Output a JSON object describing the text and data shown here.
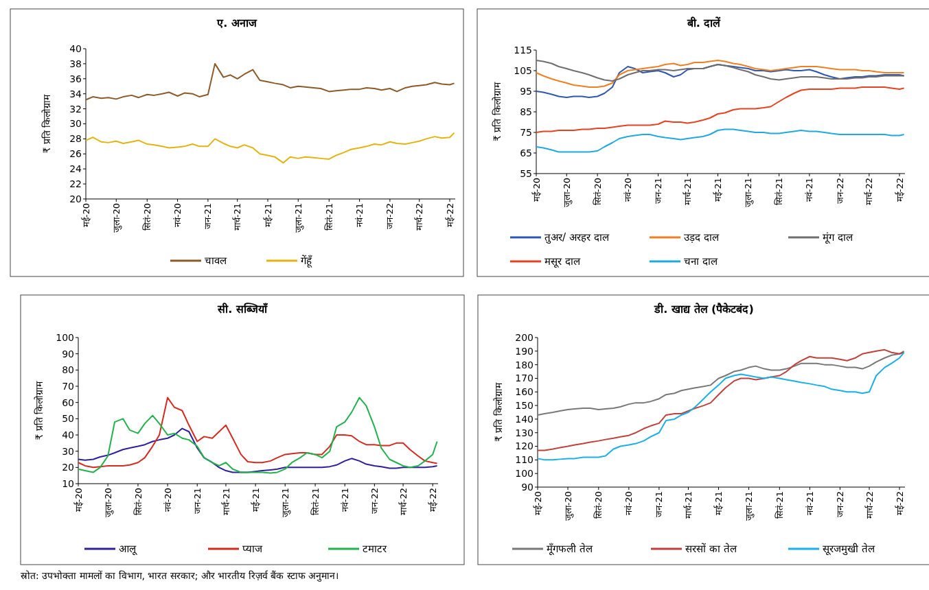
{
  "chart_data": [
    {
      "type": "line",
      "title": "ए. अनाज",
      "ylabel": "₹ प्रति किलोग्राम",
      "legend": "bottom",
      "ylim": [
        20,
        40
      ],
      "yticks": [
        20,
        22,
        24,
        26,
        28,
        30,
        32,
        34,
        36,
        38,
        40
      ],
      "xlim": [
        "2020-05-01",
        "2022-05-12"
      ],
      "xticks": [
        {
          "value": "2020-05-01",
          "label": "मई-20"
        },
        {
          "value": "2020-07-01",
          "label": "जुला-20"
        },
        {
          "value": "2020-09-01",
          "label": "सितं-20"
        },
        {
          "value": "2020-11-01",
          "label": "नवं-20"
        },
        {
          "value": "2021-01-01",
          "label": "जन-21"
        },
        {
          "value": "2021-03-01",
          "label": "मार्च-21"
        },
        {
          "value": "2021-05-01",
          "label": "मई-21"
        },
        {
          "value": "2021-07-01",
          "label": "जुला-21"
        },
        {
          "value": "2021-09-01",
          "label": "सितं-21"
        },
        {
          "value": "2021-11-01",
          "label": "नवं-21"
        },
        {
          "value": "2022-01-01",
          "label": "जन-22"
        },
        {
          "value": "2022-03-01",
          "label": "मार्च-22"
        },
        {
          "value": "2022-05-01",
          "label": "मई-22"
        }
      ],
      "x": [
        "2020-05-01",
        "2020-05-15",
        "2020-06-01",
        "2020-06-15",
        "2020-07-01",
        "2020-07-15",
        "2020-08-01",
        "2020-08-15",
        "2020-09-01",
        "2020-09-15",
        "2020-10-01",
        "2020-10-15",
        "2020-11-01",
        "2020-11-15",
        "2020-12-01",
        "2020-12-15",
        "2021-01-01",
        "2021-01-15",
        "2021-02-01",
        "2021-02-15",
        "2021-03-01",
        "2021-03-15",
        "2021-04-01",
        "2021-04-15",
        "2021-05-01",
        "2021-05-15",
        "2021-06-01",
        "2021-06-15",
        "2021-07-01",
        "2021-07-15",
        "2021-08-01",
        "2021-08-15",
        "2021-09-01",
        "2021-09-15",
        "2021-10-01",
        "2021-10-15",
        "2021-11-01",
        "2021-11-15",
        "2021-12-01",
        "2021-12-15",
        "2022-01-01",
        "2022-01-15",
        "2022-02-01",
        "2022-02-15",
        "2022-03-01",
        "2022-03-15",
        "2022-04-01",
        "2022-04-15",
        "2022-05-01",
        "2022-05-10"
      ],
      "series": [
        {
          "name": "चावल",
          "color": "#8c5a28",
          "values": [
            33.2,
            33.6,
            33.4,
            33.5,
            33.3,
            33.6,
            33.8,
            33.5,
            33.9,
            33.8,
            34.0,
            34.2,
            33.7,
            34.1,
            34.0,
            33.6,
            33.9,
            38.0,
            36.2,
            36.5,
            36.0,
            36.6,
            37.2,
            35.8,
            35.6,
            35.4,
            35.2,
            34.8,
            35.0,
            34.9,
            34.8,
            34.7,
            34.3,
            34.4,
            34.5,
            34.6,
            34.6,
            34.8,
            34.7,
            34.5,
            34.7,
            34.3,
            34.8,
            35.0,
            35.1,
            35.2,
            35.5,
            35.3,
            35.2,
            35.4
          ]
        },
        {
          "name": "गेंहूँ",
          "color": "#e2b411",
          "values": [
            27.8,
            28.2,
            27.6,
            27.5,
            27.7,
            27.4,
            27.6,
            27.8,
            27.3,
            27.2,
            27.0,
            26.8,
            26.9,
            27.0,
            27.3,
            27.0,
            27.0,
            28.0,
            27.4,
            27.0,
            26.8,
            27.2,
            26.8,
            26.0,
            25.8,
            25.6,
            24.8,
            25.6,
            25.4,
            25.6,
            25.5,
            25.4,
            25.3,
            25.8,
            26.2,
            26.6,
            26.8,
            27.0,
            27.3,
            27.2,
            27.6,
            27.4,
            27.3,
            27.5,
            27.7,
            28.0,
            28.3,
            28.1,
            28.2,
            28.8
          ]
        }
      ]
    },
    {
      "type": "line",
      "title": "बी. दालें",
      "ylabel": "₹ प्रति किलोग्राम",
      "legend": "bottom",
      "ylim": [
        55,
        115
      ],
      "yticks": [
        55,
        65,
        75,
        85,
        95,
        105,
        115
      ],
      "xlim": [
        "2020-05-01",
        "2022-05-12"
      ],
      "xticks": [
        {
          "value": "2020-05-01",
          "label": "मई-20"
        },
        {
          "value": "2020-07-01",
          "label": "जुला-20"
        },
        {
          "value": "2020-09-01",
          "label": "सितं-20"
        },
        {
          "value": "2020-11-01",
          "label": "नवं-20"
        },
        {
          "value": "2021-01-01",
          "label": "जन-21"
        },
        {
          "value": "2021-03-01",
          "label": "मार्च-21"
        },
        {
          "value": "2021-05-01",
          "label": "मई-21"
        },
        {
          "value": "2021-07-01",
          "label": "जुला-21"
        },
        {
          "value": "2021-09-01",
          "label": "सितं-21"
        },
        {
          "value": "2021-11-01",
          "label": "नवं-21"
        },
        {
          "value": "2022-01-01",
          "label": "जन-22"
        },
        {
          "value": "2022-03-01",
          "label": "मार्च-22"
        },
        {
          "value": "2022-05-01",
          "label": "मई-22"
        }
      ],
      "x": [
        "2020-05-01",
        "2020-05-15",
        "2020-06-01",
        "2020-06-15",
        "2020-07-01",
        "2020-07-15",
        "2020-08-01",
        "2020-08-15",
        "2020-09-01",
        "2020-09-15",
        "2020-10-01",
        "2020-10-15",
        "2020-11-01",
        "2020-11-15",
        "2020-12-01",
        "2020-12-15",
        "2021-01-01",
        "2021-01-15",
        "2021-02-01",
        "2021-02-15",
        "2021-03-01",
        "2021-03-15",
        "2021-04-01",
        "2021-04-15",
        "2021-05-01",
        "2021-05-15",
        "2021-06-01",
        "2021-06-15",
        "2021-07-01",
        "2021-07-15",
        "2021-08-01",
        "2021-08-15",
        "2021-09-01",
        "2021-09-15",
        "2021-10-01",
        "2021-10-15",
        "2021-11-01",
        "2021-11-15",
        "2021-12-01",
        "2021-12-15",
        "2022-01-01",
        "2022-01-15",
        "2022-02-01",
        "2022-02-15",
        "2022-03-01",
        "2022-03-15",
        "2022-04-01",
        "2022-04-15",
        "2022-05-01",
        "2022-05-10"
      ],
      "series": [
        {
          "name": "तुअर/ अरहर दाल",
          "color": "#2f56b0",
          "values": [
            95,
            94.5,
            93.5,
            92.5,
            92,
            92.5,
            92.5,
            92,
            92.5,
            94,
            97,
            104,
            107,
            106,
            104,
            104.5,
            105,
            104,
            102,
            103,
            105.5,
            106,
            106,
            107,
            108,
            107.5,
            107,
            106.5,
            106,
            105,
            105,
            104.5,
            105,
            105.5,
            105,
            105,
            105.5,
            104.5,
            103,
            102,
            101,
            101.5,
            102,
            102,
            102.5,
            102.5,
            103,
            103,
            103,
            102.5
          ]
        },
        {
          "name": "उड़द दाल",
          "color": "#f07f22",
          "values": [
            104,
            102.5,
            101,
            100,
            99,
            98,
            97.5,
            97,
            97,
            97.5,
            99,
            103,
            105,
            105.5,
            106,
            106.5,
            107,
            108,
            108.5,
            107.5,
            108,
            109,
            109,
            109.5,
            110,
            109.5,
            108.5,
            108,
            107,
            106,
            105.5,
            105,
            105.5,
            106,
            106.5,
            107,
            107,
            107,
            106.5,
            106,
            105.5,
            105.5,
            105.5,
            105,
            105,
            104.5,
            104,
            104,
            104,
            104
          ]
        },
        {
          "name": "मूंग दाल",
          "color": "#6e6e6e",
          "values": [
            110,
            109.5,
            108.5,
            107,
            106,
            105,
            104,
            103,
            101.5,
            100.5,
            100,
            101,
            103,
            104,
            105,
            105,
            105.5,
            105.5,
            105,
            105.5,
            106,
            106,
            106,
            107,
            108,
            107.5,
            106.5,
            105.5,
            104.5,
            103,
            102,
            101,
            100.5,
            101,
            101.5,
            102,
            102,
            102,
            101.5,
            101,
            101,
            101,
            101.5,
            101.5,
            102,
            102,
            102.5,
            102.5,
            102.5,
            102.5
          ]
        },
        {
          "name": "मसूर दाल",
          "color": "#e8411f",
          "values": [
            75,
            75.5,
            75.5,
            76,
            76,
            76,
            76.5,
            76.5,
            77,
            77,
            77.5,
            78,
            78.5,
            78.5,
            78.5,
            78.5,
            79,
            80.5,
            80,
            80,
            79.5,
            80,
            81,
            82,
            84,
            84.5,
            86,
            86.5,
            86.5,
            86.5,
            87,
            87.5,
            90,
            92,
            94,
            95.5,
            96,
            96,
            96,
            96,
            96.5,
            96.5,
            96.5,
            97,
            97,
            97,
            97,
            96.5,
            96,
            96.5
          ]
        },
        {
          "name": "चना दाल",
          "color": "#1fa9e1",
          "values": [
            68,
            67.5,
            66.5,
            65.5,
            65.5,
            65.5,
            65.5,
            65.5,
            66,
            68,
            70,
            72,
            73,
            73.5,
            74,
            74,
            73,
            72.5,
            72,
            71.5,
            72,
            72.5,
            73,
            74,
            76,
            76.5,
            76.5,
            76,
            75.5,
            75,
            75,
            74.5,
            74.5,
            75,
            75.5,
            76,
            75.5,
            75.5,
            75,
            74.5,
            74,
            74,
            74,
            74,
            74,
            74,
            74,
            73.5,
            73.5,
            74
          ]
        }
      ]
    },
    {
      "type": "line",
      "title": "सी. सब्जियाँ",
      "ylabel": "₹ प्रति किलोग्राम",
      "legend": "bottom",
      "ylim": [
        10,
        100
      ],
      "yticks": [
        10,
        20,
        30,
        40,
        50,
        60,
        70,
        80,
        90,
        100
      ],
      "xlim": [
        "2020-05-01",
        "2022-05-12"
      ],
      "xticks": [
        {
          "value": "2020-05-01",
          "label": "मई-20"
        },
        {
          "value": "2020-07-01",
          "label": "जुला-20"
        },
        {
          "value": "2020-09-01",
          "label": "सितं-20"
        },
        {
          "value": "2020-11-01",
          "label": "नवं-20"
        },
        {
          "value": "2021-01-01",
          "label": "जन-21"
        },
        {
          "value": "2021-03-01",
          "label": "मार्च-21"
        },
        {
          "value": "2021-05-01",
          "label": "मई-21"
        },
        {
          "value": "2021-07-01",
          "label": "जुला-21"
        },
        {
          "value": "2021-09-01",
          "label": "सितं-21"
        },
        {
          "value": "2021-11-01",
          "label": "नवं-21"
        },
        {
          "value": "2022-01-01",
          "label": "जन-22"
        },
        {
          "value": "2022-03-01",
          "label": "मार्च-22"
        },
        {
          "value": "2022-05-01",
          "label": "मई-22"
        }
      ],
      "x": [
        "2020-05-01",
        "2020-05-15",
        "2020-06-01",
        "2020-06-15",
        "2020-07-01",
        "2020-07-15",
        "2020-08-01",
        "2020-08-15",
        "2020-09-01",
        "2020-09-15",
        "2020-10-01",
        "2020-10-15",
        "2020-11-01",
        "2020-11-15",
        "2020-12-01",
        "2020-12-15",
        "2021-01-01",
        "2021-01-15",
        "2021-02-01",
        "2021-02-15",
        "2021-03-01",
        "2021-03-15",
        "2021-04-01",
        "2021-04-15",
        "2021-05-01",
        "2021-05-15",
        "2021-06-01",
        "2021-06-15",
        "2021-07-01",
        "2021-07-15",
        "2021-08-01",
        "2021-08-15",
        "2021-09-01",
        "2021-09-15",
        "2021-10-01",
        "2021-10-15",
        "2021-11-01",
        "2021-11-15",
        "2021-12-01",
        "2021-12-15",
        "2022-01-01",
        "2022-01-15",
        "2022-02-01",
        "2022-02-15",
        "2022-03-01",
        "2022-03-15",
        "2022-04-01",
        "2022-04-15",
        "2022-05-01",
        "2022-05-10"
      ],
      "series": [
        {
          "name": "आलू",
          "color": "#2e1f9c",
          "values": [
            25,
            24.5,
            25,
            26.5,
            27.5,
            29,
            31,
            32,
            33,
            34,
            36,
            37,
            38,
            40,
            44,
            42,
            32,
            26,
            23,
            20,
            18,
            17,
            17,
            17,
            17.5,
            18,
            18.5,
            19,
            20,
            20,
            20,
            20,
            20,
            20,
            20.5,
            21.5,
            24,
            25.5,
            24,
            22,
            21,
            20.5,
            19.5,
            19.5,
            20,
            20,
            20,
            20,
            20.5,
            21
          ]
        },
        {
          "name": "प्याज",
          "color": "#d42b20",
          "values": [
            23,
            21,
            20,
            20.5,
            21,
            21,
            21,
            21.5,
            23,
            26,
            33,
            40,
            63,
            57,
            55,
            46,
            36,
            39,
            38,
            42,
            46,
            38,
            28,
            23.5,
            23,
            23,
            24,
            26,
            28,
            28.5,
            29,
            29,
            28,
            28,
            33,
            40,
            40,
            39.5,
            36,
            34,
            34,
            33.5,
            33.5,
            35,
            35,
            31,
            27,
            24,
            23,
            22.5
          ]
        },
        {
          "name": "टमाटर",
          "color": "#22b14c",
          "values": [
            19,
            18,
            17,
            20,
            27,
            48,
            50,
            43,
            41,
            47,
            52,
            47,
            40,
            41,
            38,
            37,
            33,
            26,
            23,
            21,
            23,
            19,
            17,
            17,
            17,
            17,
            16.5,
            17,
            19,
            23,
            26,
            29,
            28,
            26,
            30,
            45,
            48,
            54,
            63,
            58,
            45,
            32,
            25,
            23,
            21,
            20,
            21,
            24,
            28,
            36
          ]
        }
      ]
    },
    {
      "type": "line",
      "title": "डी. खाद्य तेल (पैकेटबंद)",
      "ylabel": "₹ प्रति किलोग्राम",
      "legend": "bottom",
      "ylim": [
        90,
        200
      ],
      "yticks": [
        90,
        100,
        110,
        120,
        130,
        140,
        150,
        160,
        170,
        180,
        190,
        200
      ],
      "xlim": [
        "2020-05-01",
        "2022-05-12"
      ],
      "xticks": [
        {
          "value": "2020-05-01",
          "label": "मई-20"
        },
        {
          "value": "2020-07-01",
          "label": "जुला-20"
        },
        {
          "value": "2020-09-01",
          "label": "सितं-20"
        },
        {
          "value": "2020-11-01",
          "label": "नवं-20"
        },
        {
          "value": "2021-01-01",
          "label": "जन-21"
        },
        {
          "value": "2021-03-01",
          "label": "मार्च-21"
        },
        {
          "value": "2021-05-01",
          "label": "मई-21"
        },
        {
          "value": "2021-07-01",
          "label": "जुला-21"
        },
        {
          "value": "2021-09-01",
          "label": "सितं-21"
        },
        {
          "value": "2021-11-01",
          "label": "नवं-21"
        },
        {
          "value": "2022-01-01",
          "label": "जन-22"
        },
        {
          "value": "2022-03-01",
          "label": "मार्च-22"
        },
        {
          "value": "2022-05-01",
          "label": "मई-22"
        }
      ],
      "x": [
        "2020-05-01",
        "2020-05-15",
        "2020-06-01",
        "2020-06-15",
        "2020-07-01",
        "2020-07-15",
        "2020-08-01",
        "2020-08-15",
        "2020-09-01",
        "2020-09-15",
        "2020-10-01",
        "2020-10-15",
        "2020-11-01",
        "2020-11-15",
        "2020-12-01",
        "2020-12-15",
        "2021-01-01",
        "2021-01-15",
        "2021-02-01",
        "2021-02-15",
        "2021-03-01",
        "2021-03-15",
        "2021-04-01",
        "2021-04-15",
        "2021-05-01",
        "2021-05-15",
        "2021-06-01",
        "2021-06-15",
        "2021-07-01",
        "2021-07-15",
        "2021-08-01",
        "2021-08-15",
        "2021-09-01",
        "2021-09-15",
        "2021-10-01",
        "2021-10-15",
        "2021-11-01",
        "2021-11-15",
        "2021-12-01",
        "2021-12-15",
        "2022-01-01",
        "2022-01-15",
        "2022-02-01",
        "2022-02-15",
        "2022-03-01",
        "2022-03-15",
        "2022-04-01",
        "2022-04-15",
        "2022-05-01",
        "2022-05-10"
      ],
      "annotations": [
        "स्रोत: उपभोक्ता मामलों का विभाग, भारत सरकार; और भारतीय रिज़र्व बैंक स्टाफ अनुमान।"
      ],
      "series": [
        {
          "name": "मूँगफली तेल",
          "color": "#787878",
          "values": [
            143,
            144,
            145,
            146,
            147,
            147.5,
            148,
            148,
            147,
            147.5,
            148,
            149,
            151,
            152,
            152,
            153,
            155,
            158,
            159,
            161,
            162,
            163,
            164,
            165,
            170,
            172,
            175,
            176,
            178,
            179,
            177,
            176,
            176,
            177,
            179,
            181,
            181,
            181,
            180,
            180,
            179,
            178,
            178,
            177,
            179,
            182,
            185,
            187,
            188,
            190
          ]
        },
        {
          "name": "सरसों का तेल",
          "color": "#c0413b",
          "values": [
            117,
            117,
            118,
            119,
            120,
            121,
            122,
            123,
            124,
            125,
            126,
            127,
            128,
            130,
            133,
            135,
            137,
            143,
            144,
            144,
            146,
            148,
            150,
            152,
            158,
            163,
            168,
            170,
            170,
            169,
            170,
            171,
            172,
            175,
            180,
            183,
            186,
            185,
            185,
            185,
            184,
            183,
            185,
            188,
            189,
            190,
            191,
            189,
            188,
            189
          ]
        },
        {
          "name": "सूरजमुखी तेल",
          "color": "#19afe9",
          "values": [
            111,
            110,
            110,
            110.5,
            111,
            111,
            112,
            112,
            112,
            113,
            118,
            120,
            121,
            122,
            124,
            127,
            130,
            139,
            140,
            143,
            145,
            149,
            155,
            160,
            165,
            170,
            172,
            173,
            172,
            171,
            170,
            171,
            170,
            169,
            168,
            167,
            166,
            165,
            164,
            162,
            161,
            160,
            160,
            159,
            160,
            172,
            178,
            181,
            185,
            189
          ]
        }
      ]
    }
  ]
}
